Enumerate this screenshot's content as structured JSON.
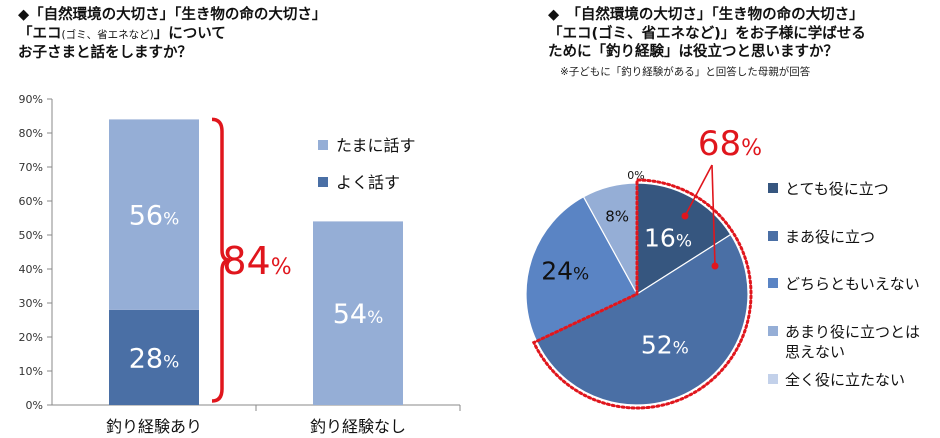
{
  "left": {
    "title_lines": [
      "◆「自然環境の大切さ」「生き物の命の大切さ」",
      "「エコ",
      "」について",
      "お子さまと話をしますか？"
    ],
    "title_small": "(ゴミ、省エネなど)",
    "chart_annotation": {
      "value": "84",
      "unit": "%"
    }
  },
  "right": {
    "title_lines": [
      "◆　「自然環境の大切さ」「生き物の命の大切さ」",
      "「エコ(ゴミ、省エネなど)」をお子様に学ばせる",
      "ために「釣り経験」は役立つと思いますか？"
    ],
    "note": "※子どもに「釣り経験がある」と回答した母親が回答",
    "chart_annotation": {
      "value": "68",
      "unit": "%"
    }
  },
  "chart_data": [
    {
      "type": "bar",
      "stacked": true,
      "categories": [
        "釣り経験あり",
        "釣り経験なし"
      ],
      "series": [
        {
          "name": "よく話す",
          "values": [
            28,
            null
          ],
          "color": "#4a6fa5",
          "label_color": "#ffffff"
        },
        {
          "name": "たまに話す",
          "values": [
            56,
            54
          ],
          "color": "#95aed6",
          "label_color": "#ffffff"
        }
      ],
      "ylim": [
        0,
        90
      ],
      "yticks": [
        "0%",
        "10%",
        "20%",
        "30%",
        "40%",
        "50%",
        "60%",
        "70%",
        "80%",
        "90%"
      ],
      "grid": false,
      "legend_position": "right",
      "legend_order": [
        "たまに話す",
        "よく話す"
      ],
      "data_unit": "%"
    },
    {
      "type": "pie",
      "labels": [
        "とても役に立つ",
        "まあ役に立つ",
        "どちらともいえない",
        "あまり役に立つとは思えない",
        "全く役に立たない"
      ],
      "legend_lines": [
        [
          "とても役に立つ"
        ],
        [
          "まあ役に立つ"
        ],
        [
          "どちらともいえない"
        ],
        [
          "あまり役に立つとは",
          "思えない"
        ],
        [
          "全く役に立たない"
        ]
      ],
      "values": [
        16,
        52,
        24,
        8,
        0
      ],
      "colors": [
        "#36567f",
        "#4a6fa5",
        "#5a84c4",
        "#95aed6",
        "#c3d1ea"
      ],
      "label_text": [
        "16%",
        "52%",
        "24%",
        "8%",
        "0%"
      ],
      "label_colors": [
        "#ffffff",
        "#ffffff",
        "#111111",
        "#111111",
        "#111111"
      ],
      "legend_position": "right",
      "start_angle_deg": 0,
      "direction": "clockwise"
    }
  ]
}
